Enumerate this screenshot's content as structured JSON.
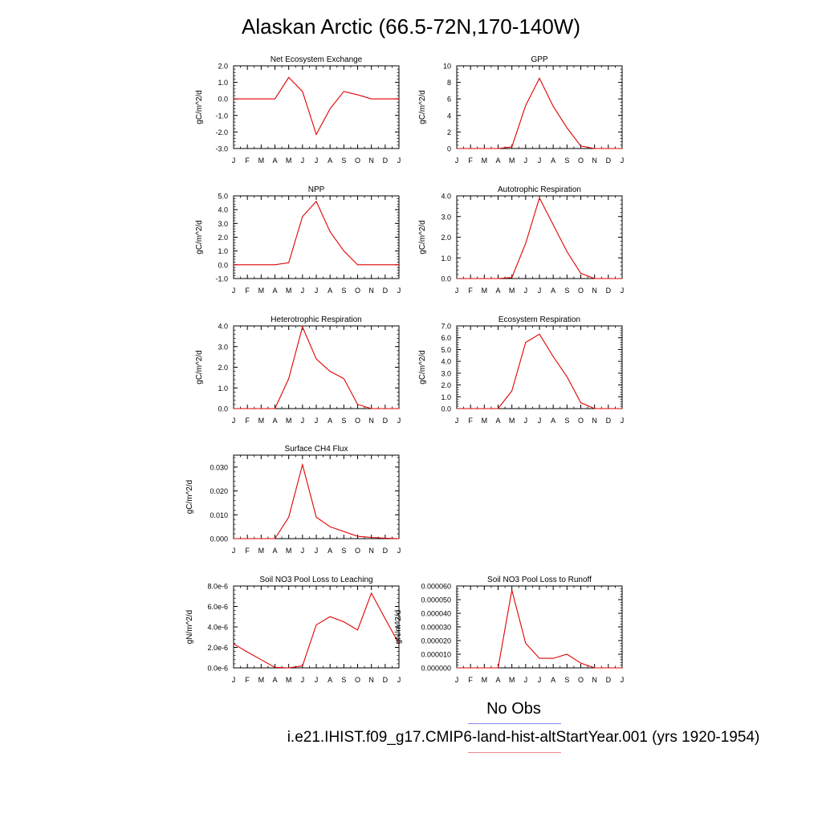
{
  "title": "Alaskan Arctic (66.5-72N,170-140W)",
  "legend": {
    "obs_label": "No Obs",
    "obs_color": "#6666ee",
    "model_label": "i.e21.IHIST.f09_g17.CMIP6-land-hist-altStartYear.001 (yrs 1920-1954)",
    "model_color": "#ee3333"
  },
  "chart_data": [
    {
      "type": "line",
      "title": "Net Ecosystem Exchange",
      "ylabel": "gC/m^2/d",
      "categories": [
        "J",
        "F",
        "M",
        "A",
        "M",
        "J",
        "J",
        "A",
        "S",
        "O",
        "N",
        "D",
        "J"
      ],
      "ylim": [
        -3.0,
        2.0
      ],
      "yticks": [
        2.0,
        1.0,
        0.0,
        -1.0,
        -2.0,
        -3.0
      ],
      "ytick_labels": [
        "2.0",
        "1.0",
        "0.0",
        "-1.0",
        "-2.0",
        "-3.0"
      ],
      "series": [
        {
          "color": "#e00000",
          "values": [
            0.0,
            0.0,
            0.0,
            0.0,
            1.3,
            0.45,
            -2.15,
            -0.6,
            0.45,
            0.25,
            0.0,
            0.0,
            0.0
          ]
        }
      ]
    },
    {
      "type": "line",
      "title": "GPP",
      "ylabel": "gC/m^2/d",
      "categories": [
        "J",
        "F",
        "M",
        "A",
        "M",
        "J",
        "J",
        "A",
        "S",
        "O",
        "N",
        "D",
        "J"
      ],
      "ylim": [
        0,
        10
      ],
      "yticks": [
        10,
        8,
        6,
        4,
        2,
        0
      ],
      "ytick_labels": [
        "10",
        "8",
        "6",
        "4",
        "2",
        "0"
      ],
      "series": [
        {
          "color": "#e00000",
          "values": [
            0.0,
            0.0,
            0.0,
            0.0,
            0.2,
            5.2,
            8.5,
            5.1,
            2.5,
            0.3,
            0.0,
            0.0,
            0.0
          ]
        }
      ]
    },
    {
      "type": "line",
      "title": "NPP",
      "ylabel": "gC/m^2/d",
      "categories": [
        "J",
        "F",
        "M",
        "A",
        "M",
        "J",
        "J",
        "A",
        "S",
        "O",
        "N",
        "D",
        "J"
      ],
      "ylim": [
        -1.0,
        5.0
      ],
      "yticks": [
        5.0,
        4.0,
        3.0,
        2.0,
        1.0,
        0.0,
        -1.0
      ],
      "ytick_labels": [
        "5.0",
        "4.0",
        "3.0",
        "2.0",
        "1.0",
        "0.0",
        "-1.0"
      ],
      "series": [
        {
          "color": "#e00000",
          "values": [
            0.0,
            0.0,
            0.0,
            0.0,
            0.15,
            3.5,
            4.6,
            2.4,
            1.0,
            0.0,
            0.0,
            0.0,
            0.0
          ]
        }
      ]
    },
    {
      "type": "line",
      "title": "Autotrophic Respiration",
      "ylabel": "gC/m^2/d",
      "categories": [
        "J",
        "F",
        "M",
        "A",
        "M",
        "J",
        "J",
        "A",
        "S",
        "O",
        "N",
        "D",
        "J"
      ],
      "ylim": [
        0.0,
        4.0
      ],
      "yticks": [
        4.0,
        3.0,
        2.0,
        1.0,
        0.0
      ],
      "ytick_labels": [
        "4.0",
        "3.0",
        "2.0",
        "1.0",
        "0.0"
      ],
      "series": [
        {
          "color": "#e00000",
          "values": [
            0.0,
            0.0,
            0.0,
            0.0,
            0.05,
            1.7,
            3.9,
            2.6,
            1.3,
            0.25,
            0.0,
            0.0,
            0.0
          ]
        }
      ]
    },
    {
      "type": "line",
      "title": "Heterotrophic Respiration",
      "ylabel": "gC/m^2/d",
      "categories": [
        "J",
        "F",
        "M",
        "A",
        "M",
        "J",
        "J",
        "A",
        "S",
        "O",
        "N",
        "D",
        "J"
      ],
      "ylim": [
        0.0,
        4.0
      ],
      "yticks": [
        4.0,
        3.0,
        2.0,
        1.0,
        0.0
      ],
      "ytick_labels": [
        "4.0",
        "3.0",
        "2.0",
        "1.0",
        "0.0"
      ],
      "series": [
        {
          "color": "#e00000",
          "values": [
            0.0,
            0.0,
            0.0,
            0.0,
            1.45,
            3.95,
            2.4,
            1.8,
            1.45,
            0.2,
            0.0,
            0.0,
            0.0
          ]
        }
      ]
    },
    {
      "type": "line",
      "title": "Ecosystem Respiration",
      "ylabel": "gC/m^2/d",
      "categories": [
        "J",
        "F",
        "M",
        "A",
        "M",
        "J",
        "J",
        "A",
        "S",
        "O",
        "N",
        "D",
        "J"
      ],
      "ylim": [
        0.0,
        7.0
      ],
      "yticks": [
        7.0,
        6.0,
        5.0,
        4.0,
        3.0,
        2.0,
        1.0,
        0.0
      ],
      "ytick_labels": [
        "7.0",
        "6.0",
        "5.0",
        "4.0",
        "3.0",
        "2.0",
        "1.0",
        "0.0"
      ],
      "series": [
        {
          "color": "#e00000",
          "values": [
            0.0,
            0.0,
            0.0,
            0.0,
            1.5,
            5.6,
            6.3,
            4.4,
            2.7,
            0.5,
            0.0,
            0.0,
            0.0
          ]
        }
      ]
    },
    {
      "type": "line",
      "title": "Surface CH4 Flux",
      "ylabel": "gC/m^2/d",
      "categories": [
        "J",
        "F",
        "M",
        "A",
        "M",
        "J",
        "J",
        "A",
        "S",
        "O",
        "N",
        "D",
        "J"
      ],
      "ylim": [
        0.0,
        0.035
      ],
      "yticks": [
        0.03,
        0.02,
        0.01,
        0.0
      ],
      "ytick_labels": [
        "0.030",
        "0.020",
        "0.010",
        "0.000"
      ],
      "series": [
        {
          "color": "#e00000",
          "values": [
            0.0,
            0.0,
            0.0,
            0.0,
            0.009,
            0.031,
            0.009,
            0.005,
            0.003,
            0.001,
            0.0005,
            0.0002,
            0.0
          ]
        }
      ]
    },
    {
      "type": "line",
      "title": "Soil NO3 Pool Loss to Leaching",
      "ylabel": "gN/m^2/d",
      "categories": [
        "J",
        "F",
        "M",
        "A",
        "M",
        "J",
        "J",
        "A",
        "S",
        "O",
        "N",
        "D",
        "J"
      ],
      "ylim": [
        0.0,
        8e-06
      ],
      "yticks": [
        8e-06,
        6e-06,
        4e-06,
        2e-06,
        0.0
      ],
      "ytick_labels": [
        "8.0e-6",
        "6.0e-6",
        "4.0e-6",
        "2.0e-6",
        "0.0e-6"
      ],
      "series": [
        {
          "color": "#e00000",
          "values": [
            2.35e-06,
            1.55e-06,
            8e-07,
            5e-08,
            0.0,
            2e-07,
            4.2e-06,
            5e-06,
            4.5e-06,
            3.7e-06,
            7.3e-06,
            4.8e-06,
            2.35e-06
          ]
        }
      ]
    },
    {
      "type": "line",
      "title": "Soil NO3 Pool Loss to Runoff",
      "ylabel": "gN/m^2/d",
      "categories": [
        "J",
        "F",
        "M",
        "A",
        "M",
        "J",
        "J",
        "A",
        "S",
        "O",
        "N",
        "D",
        "J"
      ],
      "ylim": [
        0.0,
        6e-05
      ],
      "yticks": [
        6e-05,
        5e-05,
        4e-05,
        3e-05,
        2e-05,
        1e-05,
        0.0
      ],
      "ytick_labels": [
        "0.000060",
        "0.000050",
        "0.000040",
        "0.000030",
        "0.000020",
        "0.000010",
        "0.000000"
      ],
      "series": [
        {
          "color": "#e00000",
          "values": [
            0.0,
            0.0,
            0.0,
            0.0,
            5.7e-05,
            1.8e-05,
            7e-06,
            7e-06,
            1e-05,
            3.5e-06,
            0.0,
            0.0,
            0.0
          ]
        }
      ]
    }
  ]
}
